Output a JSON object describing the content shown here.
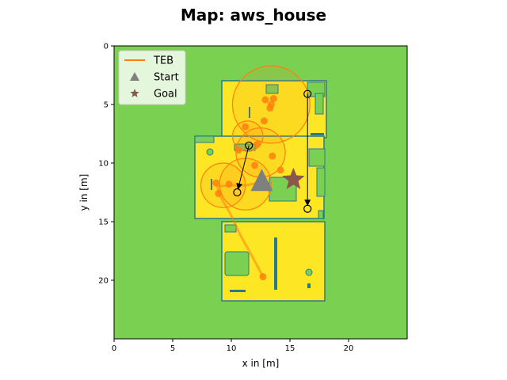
{
  "chart_data": {
    "type": "map",
    "title": "Map: aws_house",
    "xlabel": "x in [m]",
    "ylabel": "y in [m]",
    "xlim": [
      0,
      25
    ],
    "ylim": [
      25,
      0
    ],
    "x_ticks": [
      0,
      5,
      10,
      15,
      20
    ],
    "y_ticks": [
      0,
      5,
      10,
      15,
      20
    ],
    "grid": false,
    "legend_position": "top-left",
    "legend": [
      {
        "label": "TEB",
        "marker": "line",
        "color": "#ff7f0e"
      },
      {
        "label": "Start",
        "marker": "triangle",
        "color": "#7f7f7f"
      },
      {
        "label": "Goal",
        "marker": "star",
        "color": "#8c564b"
      }
    ],
    "colors": {
      "free_space": "#fde725",
      "occupied": "#7ad151",
      "wall": "#2a788e",
      "trajectory": "#ff7f0e",
      "start": "#7f7f7f",
      "goal": "#8c564b",
      "waypoints": "#000000"
    },
    "start": {
      "x": 12.6,
      "y": 11.5
    },
    "goal": {
      "x": 15.3,
      "y": 11.4
    },
    "teb_path": [
      [
        12.7,
        19.7
      ],
      [
        11.8,
        18.0
      ],
      [
        10.8,
        16.2
      ],
      [
        9.9,
        14.3
      ],
      [
        9.1,
        12.9
      ],
      [
        8.8,
        12.0
      ],
      [
        9.8,
        11.9
      ],
      [
        11.2,
        11.9
      ],
      [
        12.3,
        11.7
      ],
      [
        12.6,
        11.5
      ]
    ],
    "teb_circles": [
      {
        "x": 13.4,
        "y": 5.0,
        "r": 3.3
      },
      {
        "x": 12.5,
        "y": 9.1,
        "r": 2.1
      },
      {
        "x": 11.4,
        "y": 7.7,
        "r": 1.3
      },
      {
        "x": 11.2,
        "y": 11.8,
        "r": 2.2
      },
      {
        "x": 9.3,
        "y": 11.9,
        "r": 1.9
      }
    ],
    "teb_blobs": [
      {
        "x": 13.4,
        "y": 5.0
      },
      {
        "x": 13.6,
        "y": 4.5
      },
      {
        "x": 12.9,
        "y": 4.6
      },
      {
        "x": 13.3,
        "y": 5.3
      },
      {
        "x": 12.8,
        "y": 6.4
      },
      {
        "x": 11.2,
        "y": 6.9
      },
      {
        "x": 10.6,
        "y": 8.9
      },
      {
        "x": 12.2,
        "y": 8.4
      },
      {
        "x": 13.5,
        "y": 9.4
      },
      {
        "x": 12.0,
        "y": 10.2
      },
      {
        "x": 14.2,
        "y": 10.6
      },
      {
        "x": 8.7,
        "y": 11.7
      },
      {
        "x": 9.8,
        "y": 11.8
      },
      {
        "x": 8.9,
        "y": 12.6
      },
      {
        "x": 12.7,
        "y": 19.7
      }
    ],
    "waypoint_segments": [
      {
        "from": [
          11.5,
          8.5
        ],
        "to": [
          10.5,
          12.5
        ]
      },
      {
        "from": [
          16.5,
          4.1
        ],
        "to": [
          16.5,
          13.9
        ]
      }
    ]
  }
}
